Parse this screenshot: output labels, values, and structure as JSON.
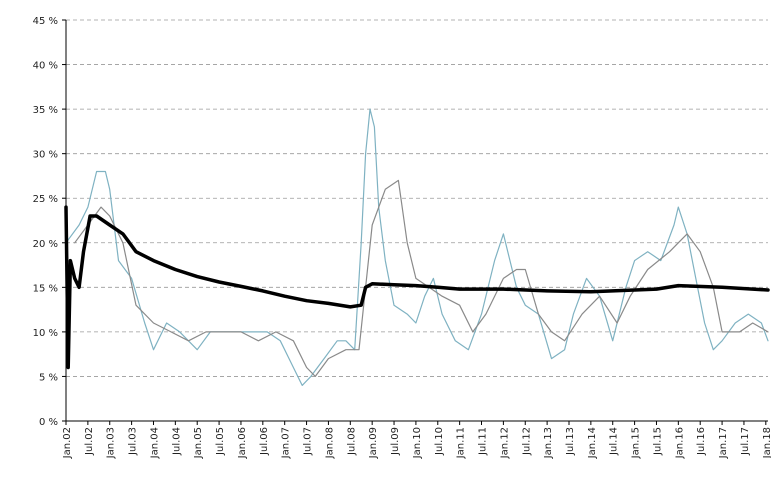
{
  "chart_data": {
    "type": "line",
    "title": "",
    "xlabel": "",
    "ylabel": "",
    "ylim": [
      0,
      45
    ],
    "y_ticks": [
      "0 %",
      "5 %",
      "10 %",
      "15 %",
      "20 %",
      "25 %",
      "30 %",
      "35 %",
      "40 %",
      "45 %"
    ],
    "grid": "horizontal dashed",
    "legend": "none",
    "x_tick_labels": [
      "Jan.02",
      "Jul.02",
      "Jan.03",
      "Jul.03",
      "Jan.04",
      "Jul.04",
      "Jan.05",
      "Jul.05",
      "Jan.06",
      "Jul.06",
      "Jan.07",
      "Jul.07",
      "Jan.08",
      "Jul.08",
      "Jan.09",
      "Jul.09",
      "Jan.10",
      "Jul.10",
      "Jan.11",
      "Jul.11",
      "Jan.12",
      "Jul.12",
      "Jan.13",
      "Jul.13",
      "Jan.14",
      "Jul.14",
      "Jan.15",
      "Jul.15",
      "Jan.16",
      "Jul.16",
      "Jan.17",
      "Jul.17",
      "Jan.18"
    ],
    "series": [
      {
        "color": "#7fb2c2",
        "width": 1.2,
        "values": [
          [
            2002.0,
            20
          ],
          [
            2002.3,
            22
          ],
          [
            2002.5,
            24
          ],
          [
            2002.7,
            28
          ],
          [
            2002.9,
            28
          ],
          [
            2003.0,
            26
          ],
          [
            2003.2,
            18
          ],
          [
            2003.5,
            16
          ],
          [
            2003.8,
            11
          ],
          [
            2004.0,
            8
          ],
          [
            2004.3,
            11
          ],
          [
            2004.6,
            10
          ],
          [
            2005.0,
            8
          ],
          [
            2005.3,
            10
          ],
          [
            2005.6,
            10
          ],
          [
            2006.0,
            10
          ],
          [
            2006.3,
            10
          ],
          [
            2006.6,
            10
          ],
          [
            2006.9,
            9
          ],
          [
            2007.2,
            6
          ],
          [
            2007.4,
            4
          ],
          [
            2007.6,
            5
          ],
          [
            2007.9,
            7
          ],
          [
            2008.2,
            9
          ],
          [
            2008.4,
            9
          ],
          [
            2008.6,
            8
          ],
          [
            2008.75,
            20
          ],
          [
            2008.85,
            30
          ],
          [
            2008.95,
            35
          ],
          [
            2009.05,
            33
          ],
          [
            2009.15,
            24
          ],
          [
            2009.3,
            18
          ],
          [
            2009.5,
            13
          ],
          [
            2009.8,
            12
          ],
          [
            2010.0,
            11
          ],
          [
            2010.2,
            14
          ],
          [
            2010.4,
            16
          ],
          [
            2010.6,
            12
          ],
          [
            2010.9,
            9
          ],
          [
            2011.2,
            8
          ],
          [
            2011.5,
            12
          ],
          [
            2011.8,
            18
          ],
          [
            2012.0,
            21
          ],
          [
            2012.3,
            15
          ],
          [
            2012.5,
            13
          ],
          [
            2012.8,
            12
          ],
          [
            2013.1,
            7
          ],
          [
            2013.4,
            8
          ],
          [
            2013.6,
            12
          ],
          [
            2013.9,
            16
          ],
          [
            2014.2,
            14
          ],
          [
            2014.5,
            9
          ],
          [
            2014.8,
            15
          ],
          [
            2015.0,
            18
          ],
          [
            2015.3,
            19
          ],
          [
            2015.6,
            18
          ],
          [
            2015.9,
            22
          ],
          [
            2016.0,
            24
          ],
          [
            2016.2,
            21
          ],
          [
            2016.4,
            16
          ],
          [
            2016.6,
            11
          ],
          [
            2016.8,
            8
          ],
          [
            2017.0,
            9
          ],
          [
            2017.3,
            11
          ],
          [
            2017.6,
            12
          ],
          [
            2017.9,
            11
          ],
          [
            2018.05,
            9
          ]
        ]
      },
      {
        "color": "#8a8a8a",
        "width": 1.2,
        "values": [
          [
            2002.2,
            20
          ],
          [
            2002.5,
            22
          ],
          [
            2002.8,
            24
          ],
          [
            2003.0,
            23
          ],
          [
            2003.3,
            20
          ],
          [
            2003.6,
            13
          ],
          [
            2004.0,
            11
          ],
          [
            2004.4,
            10
          ],
          [
            2004.8,
            9
          ],
          [
            2005.2,
            10
          ],
          [
            2005.6,
            10
          ],
          [
            2006.0,
            10
          ],
          [
            2006.4,
            9
          ],
          [
            2006.8,
            10
          ],
          [
            2007.2,
            9
          ],
          [
            2007.5,
            6
          ],
          [
            2007.7,
            5
          ],
          [
            2008.0,
            7
          ],
          [
            2008.4,
            8
          ],
          [
            2008.7,
            8
          ],
          [
            2008.85,
            15
          ],
          [
            2009.0,
            22
          ],
          [
            2009.3,
            26
          ],
          [
            2009.6,
            27
          ],
          [
            2009.8,
            20
          ],
          [
            2010.0,
            16
          ],
          [
            2010.3,
            15
          ],
          [
            2010.6,
            14
          ],
          [
            2011.0,
            13
          ],
          [
            2011.3,
            10
          ],
          [
            2011.6,
            12
          ],
          [
            2012.0,
            16
          ],
          [
            2012.3,
            17
          ],
          [
            2012.5,
            17
          ],
          [
            2012.8,
            12
          ],
          [
            2013.1,
            10
          ],
          [
            2013.4,
            9
          ],
          [
            2013.8,
            12
          ],
          [
            2014.2,
            14
          ],
          [
            2014.6,
            11
          ],
          [
            2014.9,
            14
          ],
          [
            2015.3,
            17
          ],
          [
            2015.8,
            19
          ],
          [
            2016.0,
            20
          ],
          [
            2016.2,
            21
          ],
          [
            2016.5,
            19
          ],
          [
            2016.8,
            15
          ],
          [
            2017.0,
            10
          ],
          [
            2017.4,
            10
          ],
          [
            2017.7,
            11
          ],
          [
            2018.05,
            10
          ]
        ]
      },
      {
        "color": "#000000",
        "width": 3.5,
        "values": [
          [
            2002.0,
            24
          ],
          [
            2002.05,
            6
          ],
          [
            2002.1,
            18
          ],
          [
            2002.2,
            16
          ],
          [
            2002.3,
            15
          ],
          [
            2002.4,
            19
          ],
          [
            2002.55,
            23
          ],
          [
            2002.7,
            23
          ],
          [
            2003.0,
            22
          ],
          [
            2003.3,
            21
          ],
          [
            2003.6,
            19
          ],
          [
            2004.0,
            18
          ],
          [
            2004.5,
            17
          ],
          [
            2005.0,
            16.2
          ],
          [
            2005.5,
            15.6
          ],
          [
            2006.0,
            15.1
          ],
          [
            2006.5,
            14.6
          ],
          [
            2007.0,
            14.0
          ],
          [
            2007.5,
            13.5
          ],
          [
            2008.0,
            13.2
          ],
          [
            2008.5,
            12.8
          ],
          [
            2008.75,
            13
          ],
          [
            2008.85,
            15
          ],
          [
            2009.0,
            15.4
          ],
          [
            2009.5,
            15.3
          ],
          [
            2010.0,
            15.2
          ],
          [
            2010.5,
            15.0
          ],
          [
            2011.0,
            14.8
          ],
          [
            2012.0,
            14.8
          ],
          [
            2013.0,
            14.6
          ],
          [
            2014.0,
            14.5
          ],
          [
            2015.0,
            14.7
          ],
          [
            2015.5,
            14.8
          ],
          [
            2016.0,
            15.2
          ],
          [
            2017.0,
            15.0
          ],
          [
            2018.05,
            14.7
          ]
        ]
      }
    ]
  }
}
